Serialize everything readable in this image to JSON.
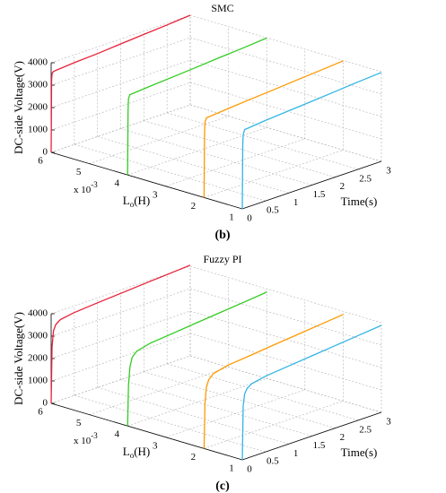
{
  "chart_data": [
    {
      "type": "line3d",
      "title": "SMC",
      "caption": "(b)",
      "zlabel": "DC-side Voltage(V)",
      "ylabel": [
        "L",
        "o",
        "(H)"
      ],
      "xlabel": "Time(s)",
      "yscale_label": [
        "x 10",
        "-3"
      ],
      "xlim": [
        0,
        3
      ],
      "xticks": [
        0,
        0.5,
        1,
        1.5,
        2,
        2.5,
        3
      ],
      "ylim": [
        1,
        6
      ],
      "yticks": [
        1,
        2,
        3,
        4,
        5,
        6
      ],
      "zlim": [
        0,
        4000
      ],
      "zticks": [
        0,
        1000,
        2000,
        3000,
        4000
      ],
      "grid": true,
      "x": [
        0,
        0.01,
        0.02,
        0.05,
        0.5,
        1,
        1.5,
        2,
        2.5,
        3
      ],
      "series": [
        {
          "y": 6,
          "color": "#e8203a",
          "values": [
            0,
            3200,
            3500,
            3580,
            3650,
            3700,
            3780,
            3850,
            3920,
            4000
          ]
        },
        {
          "y": 4,
          "color": "#33cc22",
          "values": [
            0,
            2900,
            3400,
            3550,
            3620,
            3690,
            3760,
            3840,
            3910,
            3990
          ]
        },
        {
          "y": 2,
          "color": "#ff9900",
          "values": [
            0,
            2800,
            3350,
            3520,
            3600,
            3680,
            3750,
            3830,
            3900,
            3980
          ]
        },
        {
          "y": 1,
          "color": "#33b5e5",
          "values": [
            0,
            2800,
            3300,
            3500,
            3590,
            3670,
            3740,
            3820,
            3900,
            3970
          ]
        }
      ]
    },
    {
      "type": "line3d",
      "title": "Fuzzy PI",
      "caption": "(c)",
      "zlabel": "DC-side Voltage(V)",
      "ylabel": [
        "L",
        "o",
        "(H)"
      ],
      "xlabel": "Time(s)",
      "yscale_label": [
        "x 10",
        "-3"
      ],
      "xlim": [
        0,
        3
      ],
      "xticks": [
        0,
        0.5,
        1,
        1.5,
        2,
        2.5,
        3
      ],
      "ylim": [
        1,
        6
      ],
      "yticks": [
        1,
        2,
        3,
        4,
        5,
        6
      ],
      "zlim": [
        0,
        4000
      ],
      "zticks": [
        0,
        1000,
        2000,
        3000,
        4000
      ],
      "grid": true,
      "x": [
        0,
        0.02,
        0.05,
        0.1,
        0.2,
        0.5,
        1,
        1.5,
        2,
        2.5,
        3
      ],
      "series": [
        {
          "y": 6,
          "color": "#e8203a",
          "values": [
            0,
            2500,
            3200,
            3450,
            3600,
            3700,
            3780,
            3850,
            3920,
            3980,
            4050
          ]
        },
        {
          "y": 4,
          "color": "#33cc22",
          "values": [
            0,
            1800,
            2600,
            3000,
            3200,
            3350,
            3450,
            3550,
            3650,
            3750,
            3850
          ]
        },
        {
          "y": 2,
          "color": "#ff9900",
          "values": [
            0,
            2000,
            2700,
            3000,
            3200,
            3350,
            3450,
            3560,
            3660,
            3760,
            3860
          ]
        },
        {
          "y": 1,
          "color": "#33b5e5",
          "values": [
            0,
            2400,
            2900,
            3100,
            3250,
            3380,
            3480,
            3580,
            3680,
            3780,
            3880
          ]
        }
      ]
    }
  ]
}
